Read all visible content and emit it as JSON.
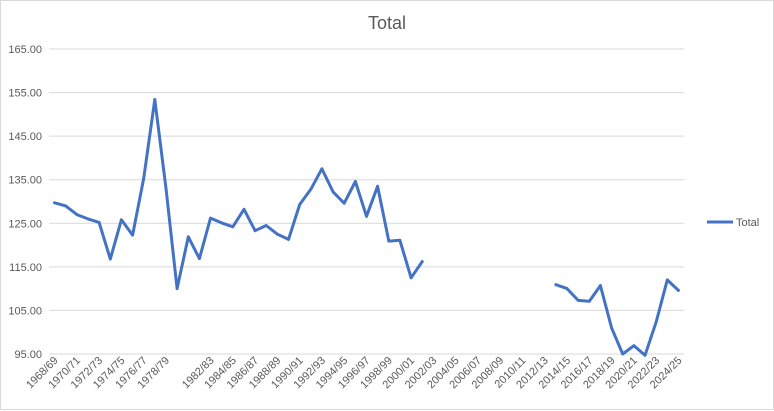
{
  "chart_data": {
    "type": "line",
    "title": "Total",
    "xlabel": "",
    "ylabel": "",
    "ylim": [
      95,
      165
    ],
    "yticks": [
      "95.00",
      "105.00",
      "115.00",
      "125.00",
      "135.00",
      "145.00",
      "155.00",
      "165.00"
    ],
    "categories": [
      "1968/69",
      "1969/70",
      "1970/71",
      "1971/72",
      "1972/73",
      "1973/74",
      "1974/75",
      "1975/76",
      "1976/77",
      "1977/78",
      "1978/79",
      "1979/80",
      "1980/81",
      "1981/82",
      "1982/83",
      "1983/84",
      "1984/85",
      "1985/86",
      "1986/87",
      "1987/88",
      "1988/89",
      "1989/90",
      "1990/91",
      "1991/92",
      "1992/93",
      "1993/94",
      "1994/95",
      "1995/96",
      "1996/97",
      "1997/98",
      "1998/99",
      "1999/00",
      "2000/01",
      "2001/02",
      "2002/03",
      "2003/04",
      "2004/05",
      "2005/06",
      "2006/07",
      "2007/08",
      "2008/09",
      "2009/10",
      "2010/11",
      "2011/12",
      "2012/13",
      "2013/14",
      "2014/15",
      "2015/16",
      "2016/17",
      "2017/18",
      "2018/19",
      "2019/20",
      "2020/21",
      "2021/22",
      "2022/23",
      "2023/24",
      "2024/25"
    ],
    "xticks": [
      "1968/69",
      "1970/71",
      "1972/73",
      "1974/75",
      "1976/77",
      "1978/79",
      "1982/83",
      "1984/85",
      "1986/87",
      "1988/89",
      "1990/91",
      "1992/93",
      "1994/95",
      "1996/97",
      "1998/99",
      "2000/01",
      "2002/03",
      "2004/05",
      "2006/07",
      "2008/09",
      "2010/11",
      "2012/13",
      "2014/15",
      "2016/17",
      "2018/19",
      "2020/21",
      "2022/23",
      "2024/25"
    ],
    "series": [
      {
        "name": "Total",
        "color": "#4472c4",
        "values": [
          129.7,
          129.0,
          127.0,
          126.0,
          125.2,
          116.8,
          125.8,
          122.3,
          135.3,
          153.4,
          133.0,
          110.0,
          121.9,
          116.9,
          126.2,
          125.1,
          124.2,
          128.2,
          123.3,
          124.5,
          122.5,
          121.3,
          129.3,
          132.8,
          137.5,
          132.2,
          129.6,
          134.6,
          126.6,
          133.5,
          120.9,
          121.1,
          112.5,
          116.2,
          null,
          null,
          null,
          null,
          null,
          null,
          null,
          null,
          null,
          null,
          null,
          110.9,
          110.0,
          107.3,
          107.1,
          110.7,
          101.0,
          95.0,
          96.9,
          94.7,
          102.3,
          112.0,
          109.6
        ]
      }
    ],
    "grid": true,
    "legend": "right"
  }
}
